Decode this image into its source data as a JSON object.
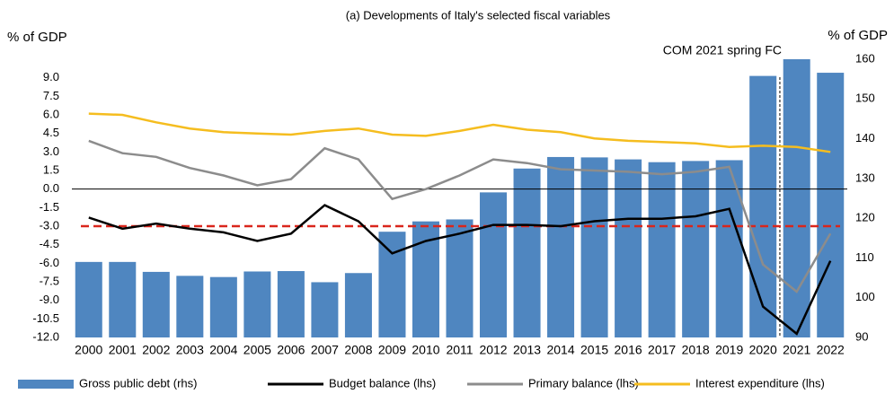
{
  "chart_data": {
    "type": "combo",
    "title": "(a) Developments of Italy's selected fiscal variables",
    "y_label": "% of GDP",
    "y2_label": "% of GDP",
    "annotation": "COM 2021 spring FC",
    "categories": [
      "2000",
      "2001",
      "2002",
      "2003",
      "2004",
      "2005",
      "2006",
      "2007",
      "2008",
      "2009",
      "2010",
      "2011",
      "2012",
      "2013",
      "2014",
      "2015",
      "2016",
      "2017",
      "2018",
      "2019",
      "2020",
      "2021",
      "2022"
    ],
    "ylim": [
      -12,
      10.5
    ],
    "yticks": [
      {
        "value": -12,
        "label": "-12.0"
      },
      {
        "value": -10.5,
        "label": "-10.5"
      },
      {
        "value": -9,
        "label": "-9.0"
      },
      {
        "value": -7.5,
        "label": "-7.5"
      },
      {
        "value": -6,
        "label": "-6.0"
      },
      {
        "value": -4.5,
        "label": "-4.5"
      },
      {
        "value": -3,
        "label": "-3.0"
      },
      {
        "value": -1.5,
        "label": "-1.5"
      },
      {
        "value": 0,
        "label": "0.0"
      },
      {
        "value": 1.5,
        "label": "1.5"
      },
      {
        "value": 3,
        "label": "3.0"
      },
      {
        "value": 4.5,
        "label": "4.5"
      },
      {
        "value": 6,
        "label": "6.0"
      },
      {
        "value": 7.5,
        "label": "7.5"
      },
      {
        "value": 9,
        "label": "9.0"
      }
    ],
    "y2lim": [
      90,
      160
    ],
    "y2ticks": [
      90,
      100,
      110,
      120,
      130,
      140,
      150,
      160
    ],
    "reference_line": {
      "value": -3,
      "color": "#d9261c"
    },
    "series": [
      {
        "name": "Gross public debt (rhs)",
        "type": "bar",
        "axis": "y2",
        "color": "#4f86c0",
        "values": [
          109,
          109,
          106.5,
          105.5,
          105.2,
          106.6,
          106.7,
          103.9,
          106.2,
          116.6,
          119.2,
          119.7,
          126.5,
          132.5,
          135.4,
          135.3,
          134.8,
          134.1,
          134.4,
          134.6,
          155.8,
          160,
          156.6
        ]
      },
      {
        "name": "Budget balance (lhs)",
        "type": "line",
        "color": "#000000",
        "values": [
          -2.3,
          -3.2,
          -2.8,
          -3.2,
          -3.5,
          -4.2,
          -3.6,
          -1.3,
          -2.6,
          -5.2,
          -4.2,
          -3.6,
          -2.9,
          -2.9,
          -3.0,
          -2.6,
          -2.4,
          -2.4,
          -2.2,
          -1.6,
          -9.5,
          -11.7,
          -5.8
        ]
      },
      {
        "name": "Primary balance (lhs)",
        "type": "line",
        "color": "#8c8c8c",
        "values": [
          3.9,
          2.9,
          2.6,
          1.7,
          1.1,
          0.3,
          0.8,
          3.3,
          2.4,
          -0.8,
          0.0,
          1.1,
          2.4,
          2.1,
          1.6,
          1.5,
          1.4,
          1.2,
          1.4,
          1.8,
          -6.1,
          -8.3,
          -3.6
        ]
      },
      {
        "name": "Interest expenditure (lhs)",
        "type": "line",
        "color": "#f5bd1f",
        "values": [
          6.1,
          6.0,
          5.4,
          4.9,
          4.6,
          4.5,
          4.4,
          4.7,
          4.9,
          4.4,
          4.3,
          4.7,
          5.2,
          4.8,
          4.6,
          4.1,
          3.9,
          3.8,
          3.7,
          3.4,
          3.5,
          3.4,
          3.0
        ]
      }
    ]
  }
}
